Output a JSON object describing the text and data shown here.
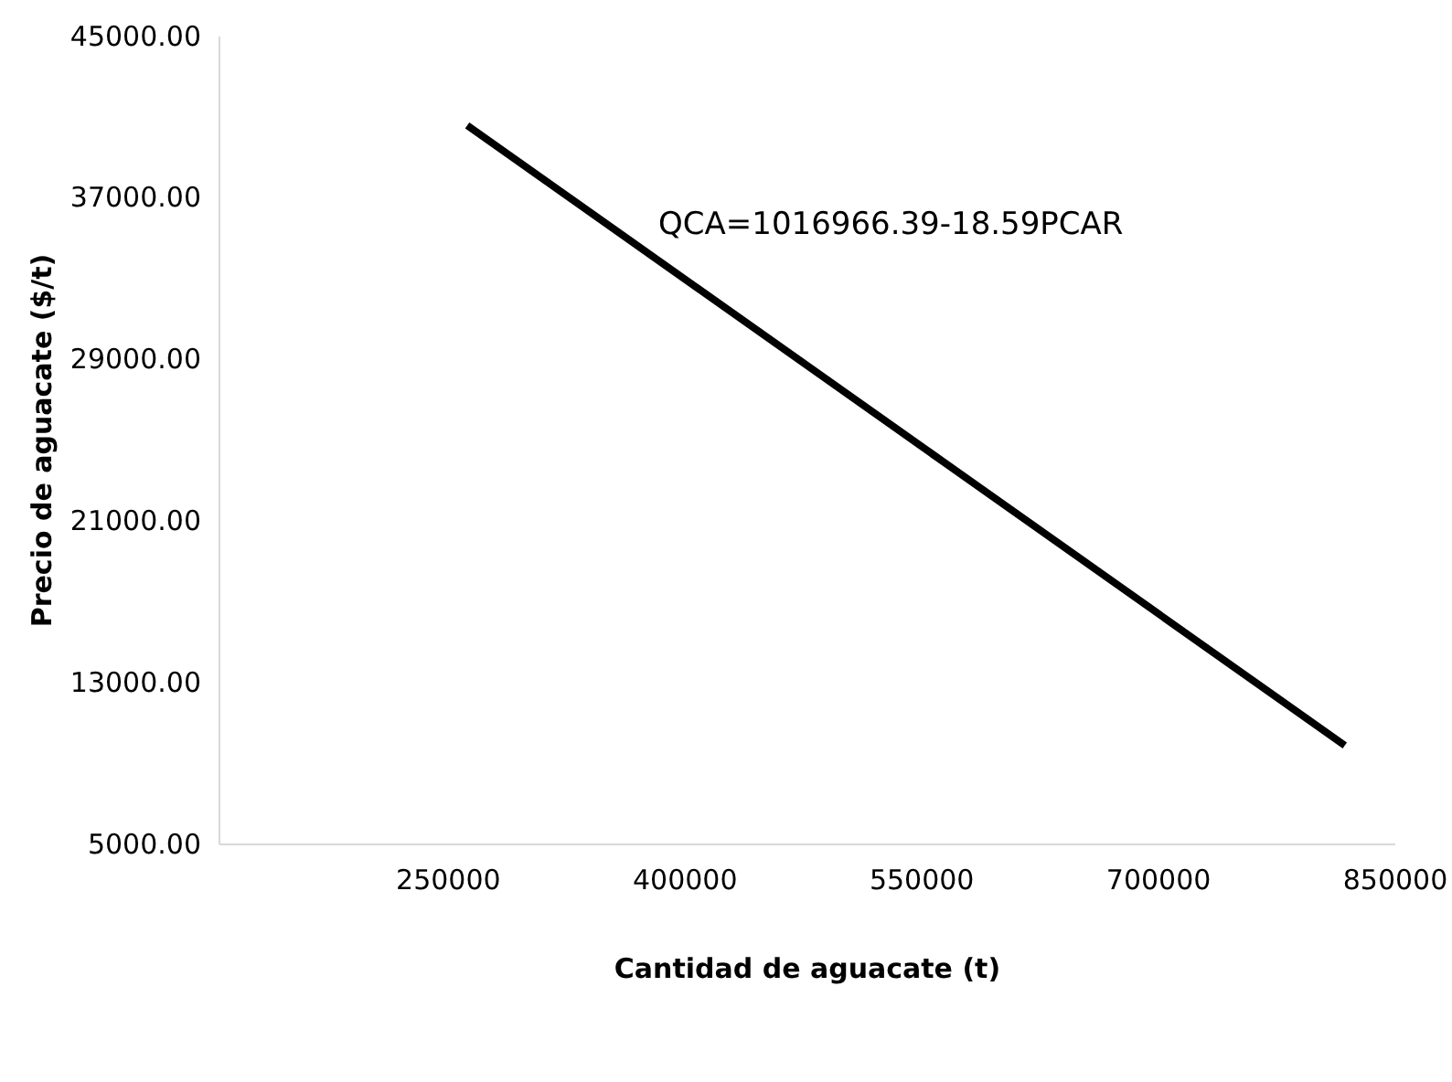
{
  "chart_data": {
    "type": "line",
    "xlabel": "Cantidad de aguacate   (t)",
    "ylabel": "Precio de aguacate   ($/t)",
    "x": [
      262000,
      818000
    ],
    "series": [
      {
        "color": "#000000",
        "values": [
          40600,
          9900
        ]
      }
    ],
    "xlim": [
      105000,
      850000
    ],
    "xticks": [
      250000,
      400000,
      550000,
      700000,
      850000
    ],
    "ylim": [
      5000,
      45000
    ],
    "yticks": [
      {
        "value": 5000,
        "label": "5000.00"
      },
      {
        "value": 13000,
        "label": "13000.00"
      },
      {
        "value": 21000,
        "label": "21000.00"
      },
      {
        "value": 29000,
        "label": "29000.00"
      },
      {
        "value": 37000,
        "label": "37000.00"
      },
      {
        "value": 45000,
        "label": "45000.00"
      }
    ],
    "annotations": [
      "QCA=1016966.39-18.59PCAR"
    ],
    "grid": false,
    "marker": "none",
    "line_style": "solid"
  }
}
